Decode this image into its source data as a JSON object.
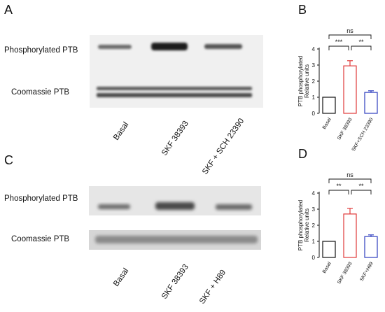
{
  "panels": {
    "A": {
      "letter": "A",
      "row_labels": [
        "Phosphorylated PTB",
        "Coomassie PTB"
      ],
      "lanes": [
        "Basal",
        "SKF 38393",
        "SKF + SCH 23390"
      ]
    },
    "C": {
      "letter": "C",
      "row_labels": [
        "Phosphorylated PTB",
        "Coomassie PTB"
      ],
      "lanes": [
        "Basal",
        "SKF 38393",
        "SKF + H89"
      ]
    }
  },
  "colors": {
    "basal": "#111111",
    "skf": "#e03a3a",
    "combo": "#2d3dbf",
    "errorbar": "#e03a3a"
  },
  "chart_data": [
    {
      "panel": "B",
      "type": "bar",
      "ylabel_line1": "PTB phosphorylated",
      "ylabel_line2": "Relative units",
      "ylim": [
        0,
        4
      ],
      "yticks": [
        "0",
        "1",
        "2",
        "3",
        "4"
      ],
      "categories": [
        "Basal",
        "SKF 38393",
        "SKF+SCH 23390"
      ],
      "values": [
        1.0,
        2.95,
        1.3
      ],
      "errors": [
        0,
        0.32,
        0.1
      ],
      "significance": [
        {
          "from": 0,
          "to": 2,
          "label": "ns"
        },
        {
          "from": 0,
          "to": 1,
          "label": "***"
        },
        {
          "from": 1,
          "to": 2,
          "label": "**"
        }
      ]
    },
    {
      "panel": "D",
      "type": "bar",
      "ylabel_line1": "PTB phosphorylated",
      "ylabel_line2": "Relative units",
      "ylim": [
        0,
        4
      ],
      "yticks": [
        "0",
        "1",
        "2",
        "3",
        "4"
      ],
      "categories": [
        "Basal",
        "SKF 38393",
        "SKF+H89"
      ],
      "values": [
        1.0,
        2.7,
        1.3
      ],
      "errors": [
        0,
        0.35,
        0.1
      ],
      "significance": [
        {
          "from": 0,
          "to": 2,
          "label": "ns"
        },
        {
          "from": 0,
          "to": 1,
          "label": "**"
        },
        {
          "from": 1,
          "to": 2,
          "label": "**"
        }
      ]
    }
  ]
}
